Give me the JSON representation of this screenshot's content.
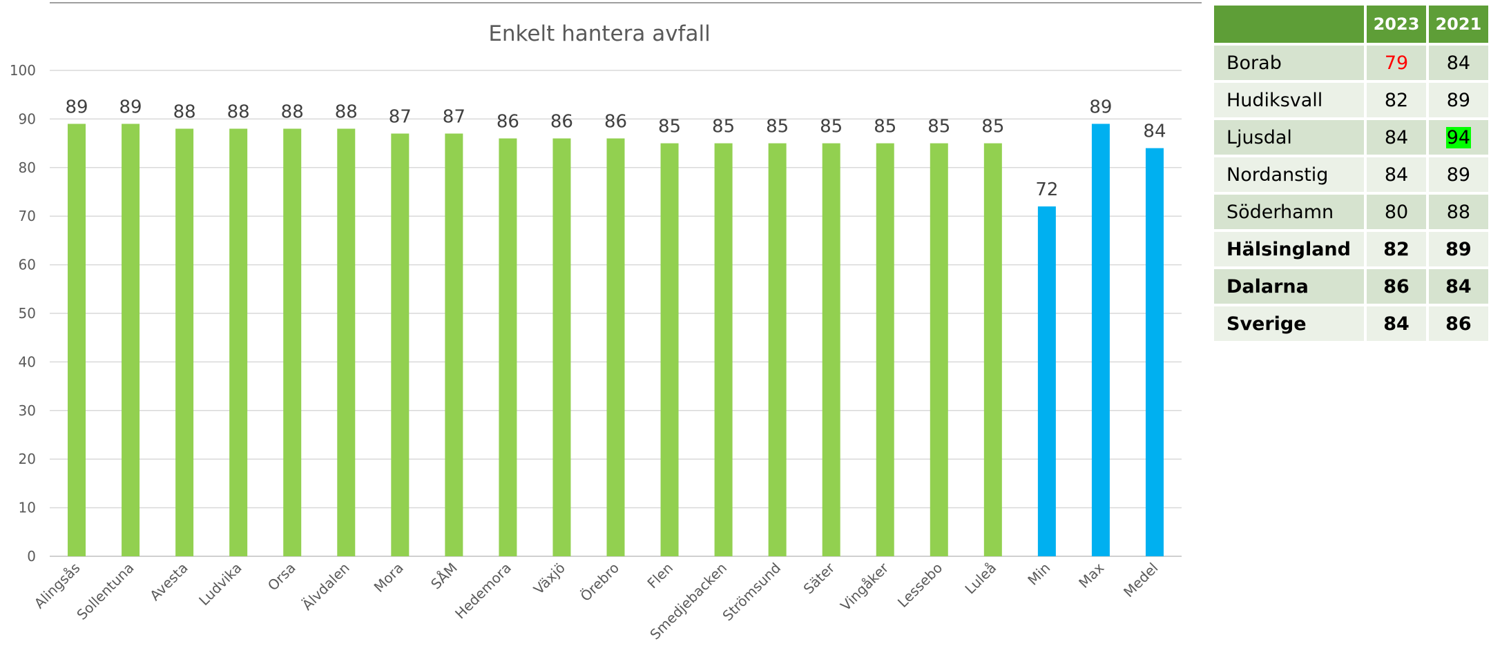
{
  "chart_data": {
    "type": "bar",
    "title": "Enkelt hantera avfall",
    "categories": [
      "Alingsås",
      "Sollentuna",
      "Avesta",
      "Ludvika",
      "Orsa",
      "Älvdalen",
      "Mora",
      "SÅM",
      "Hedemora",
      "Växjö",
      "Örebro",
      "Flen",
      "Smedjebacken",
      "Strömsund",
      "Säter",
      "Vingåker",
      "Lessebo",
      "Luleå",
      "Min",
      "Max",
      "Medel"
    ],
    "values": [
      89,
      89,
      88,
      88,
      88,
      88,
      87,
      87,
      86,
      86,
      86,
      85,
      85,
      85,
      85,
      85,
      85,
      85,
      72,
      89,
      84
    ],
    "bar_colors": [
      "#92d050",
      "#92d050",
      "#92d050",
      "#92d050",
      "#92d050",
      "#92d050",
      "#92d050",
      "#92d050",
      "#92d050",
      "#92d050",
      "#92d050",
      "#92d050",
      "#92d050",
      "#92d050",
      "#92d050",
      "#92d050",
      "#92d050",
      "#92d050",
      "#00b0f0",
      "#00b0f0",
      "#00b0f0"
    ],
    "ylim": [
      0,
      100
    ],
    "yticks": [
      0,
      10,
      20,
      30,
      40,
      50,
      60,
      70,
      80,
      90,
      100
    ],
    "xlabel": "",
    "ylabel": "",
    "grid": true,
    "legend": "none",
    "data_labels": true
  },
  "table": {
    "headers": [
      "",
      "2023",
      "2021"
    ],
    "rows": [
      {
        "name": "Borab",
        "v2023": "79",
        "v2021": "84",
        "bold": false,
        "red2023": true,
        "hl2021": false
      },
      {
        "name": "Hudiksvall",
        "v2023": "82",
        "v2021": "89",
        "bold": false,
        "red2023": false,
        "hl2021": false
      },
      {
        "name": "Ljusdal",
        "v2023": "84",
        "v2021": "94",
        "bold": false,
        "red2023": false,
        "hl2021": true
      },
      {
        "name": "Nordanstig",
        "v2023": "84",
        "v2021": "89",
        "bold": false,
        "red2023": false,
        "hl2021": false
      },
      {
        "name": "Söderhamn",
        "v2023": "80",
        "v2021": "88",
        "bold": false,
        "red2023": false,
        "hl2021": false
      },
      {
        "name": "Hälsingland",
        "v2023": "82",
        "v2021": "89",
        "bold": true,
        "red2023": false,
        "hl2021": false
      },
      {
        "name": "Dalarna",
        "v2023": "86",
        "v2021": "84",
        "bold": true,
        "red2023": false,
        "hl2021": false
      },
      {
        "name": "Sverige",
        "v2023": "84",
        "v2021": "86",
        "bold": true,
        "red2023": false,
        "hl2021": false
      }
    ]
  },
  "colors": {
    "header_green": "#5e9e37",
    "row_odd": "#d6e3cf",
    "row_even": "#ebf1e7",
    "bar_green": "#92d050",
    "bar_blue": "#00b0f0",
    "low_value_red": "#ff0000",
    "high_value_highlight": "#00ff00"
  }
}
